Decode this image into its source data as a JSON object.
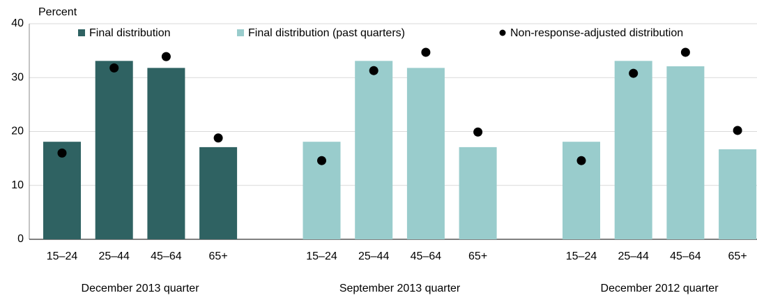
{
  "chart_data": {
    "type": "bar",
    "y_label": "Percent",
    "categories": [
      "15–24",
      "25–44",
      "45–64",
      "65+",
      "15–24",
      "25–44",
      "45–64",
      "65+",
      "15–24",
      "25–44",
      "45–64",
      "65+"
    ],
    "groups": [
      "December 2013 quarter",
      "September 2013 quarter",
      "December 2012 quarter"
    ],
    "series": [
      {
        "name": "Final distribution",
        "color": "#2f6262",
        "kind": "bar",
        "values": [
          18.1,
          33.1,
          31.8,
          17.1,
          null,
          null,
          null,
          null,
          null,
          null,
          null,
          null
        ]
      },
      {
        "name": "Final distribution (past quarters)",
        "color": "#99cccc",
        "kind": "bar",
        "values": [
          null,
          null,
          null,
          null,
          18.1,
          33.1,
          31.8,
          17.1,
          18.1,
          33.1,
          32.1,
          16.7
        ]
      },
      {
        "name": "Non-response-adjusted distribution",
        "color": "#000000",
        "kind": "dot",
        "values": [
          16.0,
          31.8,
          33.9,
          18.8,
          14.6,
          31.3,
          34.7,
          19.9,
          14.6,
          30.8,
          34.7,
          20.2
        ]
      }
    ],
    "ylim": [
      0,
      40
    ],
    "yticks": [
      0,
      10,
      20,
      30,
      40
    ],
    "grid": true
  }
}
